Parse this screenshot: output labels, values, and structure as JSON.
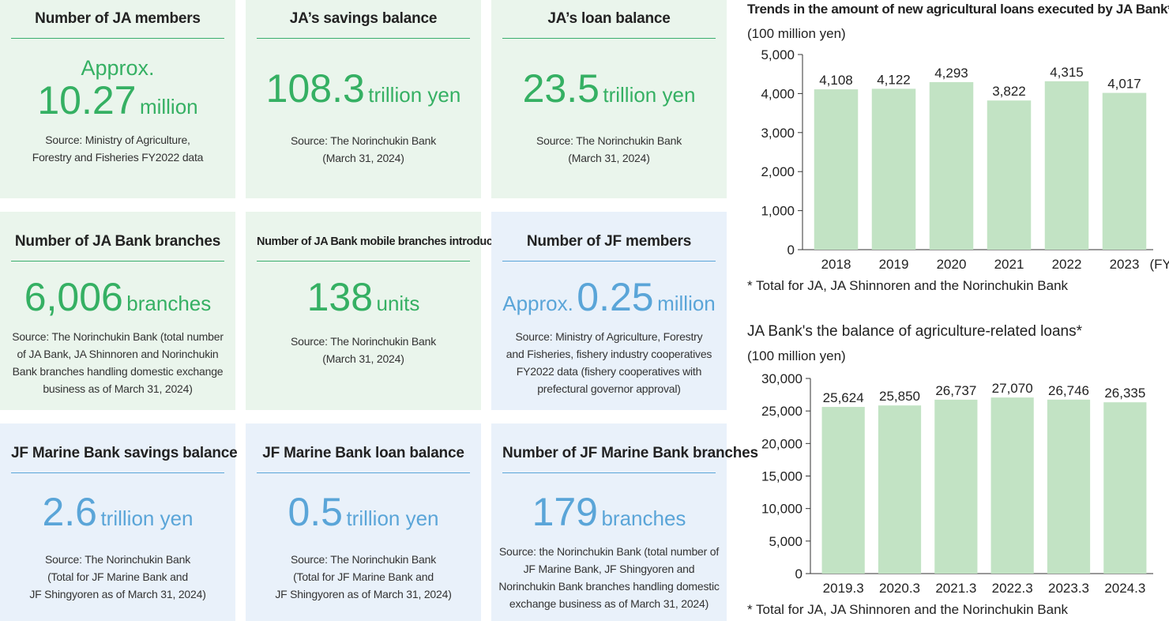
{
  "cards": [
    {
      "title": "Number of JA members",
      "prefix": "Approx.",
      "value": "10.27",
      "unit": "million",
      "source": [
        "Source: Ministry of Agriculture,",
        "Forestry and Fisheries FY2022 data"
      ]
    },
    {
      "title": "JA’s savings balance",
      "prefix": "",
      "value": "108.3",
      "unit": "trillion yen",
      "source": [
        "Source: The Norinchukin Bank",
        "(March 31, 2024)"
      ]
    },
    {
      "title": "JA’s loan balance",
      "prefix": "",
      "value": "23.5",
      "unit": "trillion yen",
      "source": [
        "Source: The Norinchukin Bank",
        "(March 31, 2024)"
      ]
    },
    {
      "title": "Number of JA Bank branches",
      "prefix": "",
      "value": "6,006",
      "unit": "branches",
      "source": [
        "Source: The Norinchukin Bank (total number",
        "of JA Bank, JA Shinnoren and Norinchukin",
        "Bank branches handling domestic exchange",
        "business as of March 31, 2024)"
      ]
    },
    {
      "title": "Number of JA Bank mobile branches introduced",
      "prefix": "",
      "value": "138",
      "unit": "units",
      "source": [
        "Source: The Norinchukin Bank",
        "(March 31, 2024)"
      ]
    },
    {
      "title": "Number of JF members",
      "prefix": "Approx.",
      "value": "0.25",
      "unit": "million",
      "source": [
        "Source: Ministry of Agriculture, Forestry",
        "and Fisheries, fishery industry cooperatives",
        "FY2022 data (fishery cooperatives with",
        "prefectural governor approval)"
      ]
    },
    {
      "title": "JF Marine Bank savings balance",
      "prefix": "",
      "value": "2.6",
      "unit": "trillion yen",
      "source": [
        "Source: The Norinchukin Bank",
        "(Total for JF Marine Bank and",
        "JF Shingyoren as of March 31, 2024)"
      ]
    },
    {
      "title": "JF Marine Bank loan balance",
      "prefix": "",
      "value": "0.5",
      "unit": "trillion yen",
      "source": [
        "Source: The Norinchukin Bank",
        "(Total for JF Marine Bank and",
        "JF Shingyoren as of March 31, 2024)"
      ]
    },
    {
      "title": "Number of JF Marine Bank branches",
      "prefix": "",
      "value": "179",
      "unit": "branches",
      "source": [
        "Source: the Norinchukin Bank (total number of",
        "JF Marine Bank, JF Shingyoren and",
        "Norinchukin Bank branches handling domestic",
        "exchange business as of March 31, 2024)"
      ]
    }
  ],
  "colors": {
    "green_bg": "#eaf5ec",
    "blue_bg": "#e9f1fa",
    "green_text": "#35b063",
    "blue_text": "#5aa5d8",
    "bar_fill": "#c2e3c4"
  },
  "chart_data": [
    {
      "type": "bar",
      "title": "Trends in the amount of new agricultural loans executed by JA Bank*",
      "ylabel": "(100 million yen)",
      "categories": [
        "2018",
        "2019",
        "2020",
        "2021",
        "2022",
        "2023"
      ],
      "x_suffix": "(FY)",
      "values": [
        4108,
        4122,
        4293,
        3822,
        4315,
        4017
      ],
      "value_labels": [
        "4,108",
        "4,122",
        "4,293",
        "3,822",
        "4,315",
        "4,017"
      ],
      "ylim": [
        0,
        5000
      ],
      "yticks": [
        0,
        1000,
        2000,
        3000,
        4000,
        5000
      ],
      "ytick_labels": [
        "0",
        "1,000",
        "2,000",
        "3,000",
        "4,000",
        "5,000"
      ],
      "grid": false,
      "note": "* Total for JA, JA Shinnoren and the Norinchukin Bank"
    },
    {
      "type": "bar",
      "title": "JA Bank's the balance of agriculture-related loans*",
      "ylabel": "(100 million yen)",
      "categories": [
        "2019.3",
        "2020.3",
        "2021.3",
        "2022.3",
        "2023.3",
        "2024.3"
      ],
      "x_suffix": "",
      "values": [
        25624,
        25850,
        26737,
        27070,
        26746,
        26335
      ],
      "value_labels": [
        "25,624",
        "25,850",
        "26,737",
        "27,070",
        "26,746",
        "26,335"
      ],
      "ylim": [
        0,
        30000
      ],
      "yticks": [
        0,
        5000,
        10000,
        15000,
        20000,
        25000,
        30000
      ],
      "ytick_labels": [
        "0",
        "5,000",
        "10,000",
        "15,000",
        "20,000",
        "25,000",
        "30,000"
      ],
      "grid": false,
      "note": "* Total for JA, JA Shinnoren and the Norinchukin Bank"
    }
  ]
}
